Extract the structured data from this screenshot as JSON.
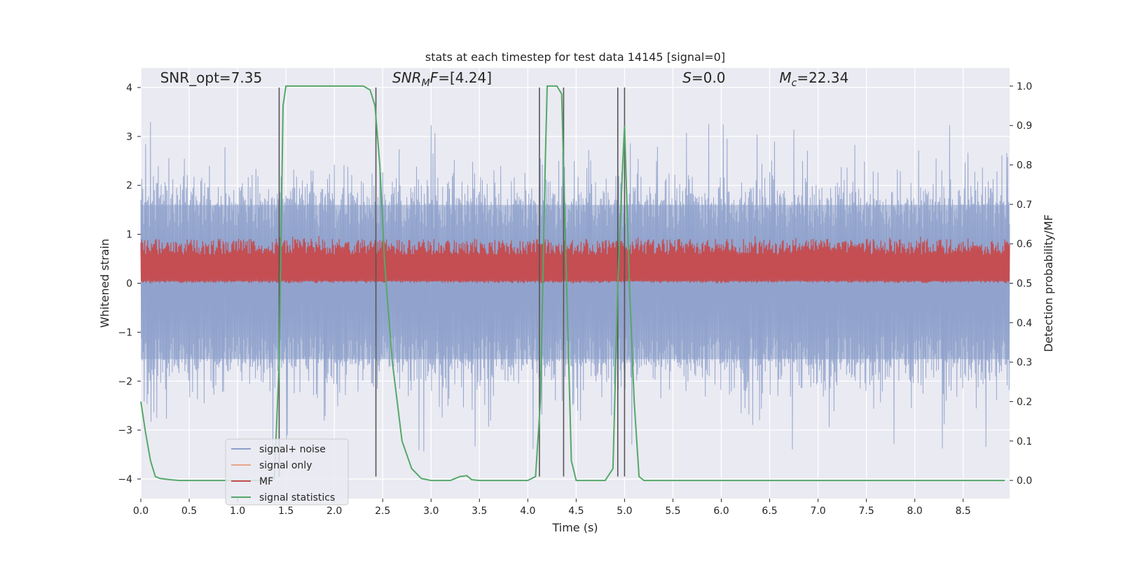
{
  "chart_data": {
    "type": "line",
    "title": "stats at each timestep for test data 14145 [signal=0]",
    "xlabel": "Time (s)",
    "ylabel_left": "Whitened strain",
    "ylabel_right": "Detection probability/MF",
    "xlim": [
      0.0,
      8.98
    ],
    "ylim_left": [
      -4.4,
      4.4
    ],
    "ylim_right": [
      -0.046,
      1.046
    ],
    "x_ticks": [
      0.0,
      0.5,
      1.0,
      1.5,
      2.0,
      2.5,
      3.0,
      3.5,
      4.0,
      4.5,
      5.0,
      5.5,
      6.0,
      6.5,
      7.0,
      7.5,
      8.0,
      8.5
    ],
    "x_tick_labels": [
      "0.0",
      "0.5",
      "1.0",
      "1.5",
      "2.0",
      "2.5",
      "3.0",
      "3.5",
      "4.0",
      "4.5",
      "5.0",
      "5.5",
      "6.0",
      "6.5",
      "7.0",
      "7.5",
      "8.0",
      "8.5"
    ],
    "y_left_ticks": [
      -4,
      -3,
      -2,
      -1,
      0,
      1,
      2,
      3,
      4
    ],
    "y_left_tick_labels": [
      "−4",
      "−3",
      "−2",
      "−1",
      "0",
      "1",
      "2",
      "3",
      "4"
    ],
    "y_right_ticks": [
      0.0,
      0.1,
      0.2,
      0.3,
      0.4,
      0.5,
      0.6,
      0.7,
      0.8,
      0.9,
      1.0
    ],
    "y_right_tick_labels": [
      "0.0",
      "0.1",
      "0.2",
      "0.3",
      "0.4",
      "0.5",
      "0.6",
      "0.7",
      "0.8",
      "0.9",
      "1.0"
    ],
    "grid": true,
    "legend_placement": "lower-left",
    "annotations": [
      {
        "x": 0.2,
        "y": 4.1,
        "parts": [
          {
            "t": "SNR_opt=7.35",
            "i": false
          }
        ]
      },
      {
        "x": 2.6,
        "y": 4.1,
        "parts": [
          {
            "t": "SNR",
            "i": true
          },
          {
            "t": "M",
            "i": true,
            "sub": true
          },
          {
            "t": "F",
            "i": true
          },
          {
            "t": "=[4.24]",
            "i": false
          }
        ]
      },
      {
        "x": 5.6,
        "y": 4.1,
        "parts": [
          {
            "t": "S",
            "i": true
          },
          {
            "t": "=0.0",
            "i": false
          }
        ]
      },
      {
        "x": 6.6,
        "y": 4.1,
        "parts": [
          {
            "t": "M",
            "i": true
          },
          {
            "t": "c",
            "i": true,
            "sub": true
          },
          {
            "t": "=22.34",
            "i": false
          }
        ]
      }
    ],
    "vertical_lines": [
      1.43,
      2.43,
      4.12,
      4.37,
      4.93,
      5.0
    ],
    "vertical_line_range": [
      -3.95,
      4.0
    ],
    "series": [
      {
        "name": "signal+ noise",
        "color": "#8da0cb",
        "axis": "left",
        "kind": "noise",
        "sample_rate": 200,
        "envelope_upper": 1.6,
        "envelope_lower": -1.55,
        "typical_spike_max": 3.4,
        "typical_spike_min": -3.5
      },
      {
        "name": "signal only",
        "color": "#e9a58a",
        "axis": "left",
        "kind": "line",
        "x": [],
        "y": []
      },
      {
        "name": "MF",
        "color": "#c44e52",
        "axis": "right",
        "kind": "noise",
        "sample_rate": 200,
        "band_low": 0.505,
        "band_high": 0.585,
        "typical_spike_max": 0.62
      },
      {
        "name": "signal statistics",
        "color": "#55a868",
        "axis": "right",
        "kind": "line",
        "x": [
          0.0,
          0.05,
          0.1,
          0.15,
          0.2,
          0.3,
          0.4,
          0.6,
          1.0,
          1.3,
          1.38,
          1.43,
          1.47,
          1.5,
          1.6,
          2.0,
          2.3,
          2.37,
          2.42,
          2.47,
          2.52,
          2.6,
          2.7,
          2.8,
          2.9,
          3.0,
          3.2,
          3.3,
          3.37,
          3.42,
          3.5,
          4.0,
          4.08,
          4.13,
          4.18,
          4.2,
          4.3,
          4.35,
          4.39,
          4.45,
          4.5,
          4.8,
          4.88,
          4.93,
          4.98,
          5.0,
          5.05,
          5.1,
          5.15,
          5.2,
          6.0,
          7.0,
          8.0,
          8.93
        ],
        "y": [
          0.2,
          0.12,
          0.05,
          0.01,
          0.005,
          0.002,
          0.0,
          0.0,
          0.0,
          0.0,
          0.005,
          0.3,
          0.95,
          1.0,
          1.0,
          1.0,
          1.0,
          0.99,
          0.95,
          0.8,
          0.55,
          0.3,
          0.1,
          0.03,
          0.005,
          0.0,
          0.0,
          0.01,
          0.012,
          0.002,
          0.0,
          0.0,
          0.01,
          0.2,
          0.8,
          1.0,
          1.0,
          0.98,
          0.6,
          0.05,
          0.0,
          0.0,
          0.03,
          0.5,
          0.8,
          0.9,
          0.5,
          0.2,
          0.01,
          0.0,
          0.0,
          0.0,
          0.0,
          0.0
        ]
      }
    ]
  }
}
